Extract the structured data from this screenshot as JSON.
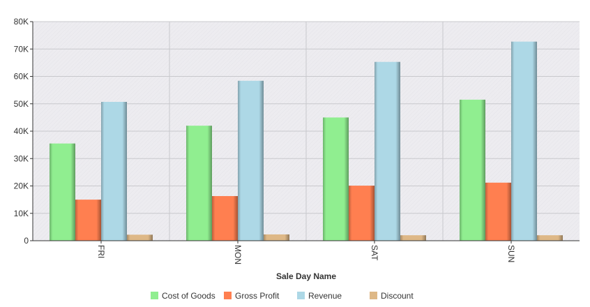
{
  "chart_data": {
    "type": "bar",
    "title": "",
    "xlabel": "Sale Day Name",
    "ylabel": "",
    "categories": [
      "FRI",
      "MON",
      "SAT",
      "SUN"
    ],
    "series": [
      {
        "name": "Cost of Goods",
        "values": [
          35500,
          42000,
          45000,
          51500
        ],
        "color": "#90EE90"
      },
      {
        "name": "Gross Profit",
        "values": [
          15000,
          16300,
          20100,
          21200
        ],
        "color": "#FF7F50"
      },
      {
        "name": "Revenue",
        "values": [
          50700,
          58400,
          65300,
          72700
        ],
        "color": "#ADD8E6"
      },
      {
        "name": "Discount",
        "values": [
          2200,
          2300,
          2000,
          2000
        ],
        "color": "#DEB887"
      }
    ],
    "ylim": [
      0,
      80000
    ],
    "yticks": [
      0,
      10000,
      20000,
      30000,
      40000,
      50000,
      60000,
      70000,
      80000
    ],
    "ytick_labels": [
      "0",
      "10K",
      "20K",
      "30K",
      "40K",
      "50K",
      "60K",
      "70K",
      "80K"
    ],
    "grid": true,
    "legend_position": "bottom",
    "plot_background": "#EDECF0",
    "grid_color": "#C8C8CC"
  }
}
